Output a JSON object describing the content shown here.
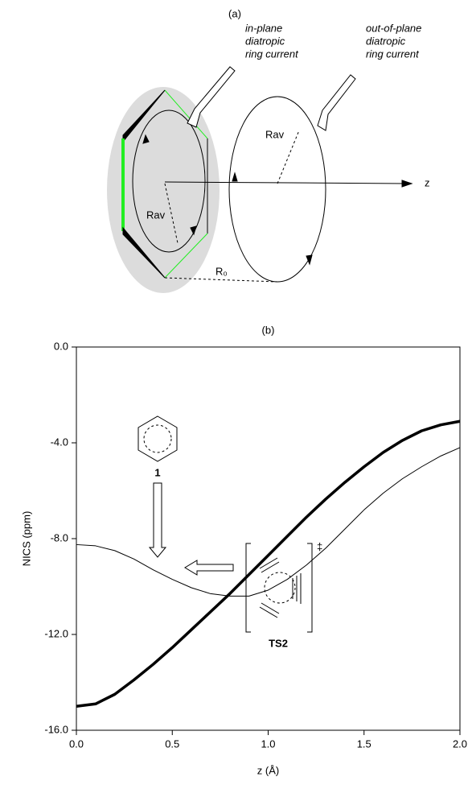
{
  "diagram": {
    "label": "(a)",
    "in_plane": [
      "in-plane",
      "diatropic",
      "ring current"
    ],
    "out_of_plane": [
      "out-of-plane",
      "diatropic",
      "ring current"
    ],
    "rav_in": "Rav",
    "rav_out": "Rav",
    "axis": "z",
    "r0": "R₀"
  },
  "chart_data": {
    "type": "line",
    "title": "(b)",
    "xlabel": "z (Å)",
    "ylabel": "NICS (ppm)",
    "x": [
      0,
      0.1,
      0.2,
      0.3,
      0.4,
      0.5,
      0.6,
      0.7,
      0.8,
      0.9,
      1.0,
      1.1,
      1.2,
      1.3,
      1.4,
      1.5,
      1.6,
      1.7,
      1.8,
      1.9,
      2.0
    ],
    "series": [
      {
        "name": "1",
        "color": "#000000",
        "width": 1,
        "values": [
          -8.25,
          -8.3,
          -8.5,
          -8.85,
          -9.3,
          -9.7,
          -10.05,
          -10.3,
          -10.4,
          -10.4,
          -10.15,
          -9.7,
          -9.1,
          -8.4,
          -7.6,
          -6.8,
          -6.1,
          -5.5,
          -5.0,
          -4.55,
          -4.2
        ]
      },
      {
        "name": "TS2",
        "color": "#000000",
        "width": 3.5,
        "values": [
          -15.0,
          -14.9,
          -14.5,
          -13.9,
          -13.25,
          -12.55,
          -11.8,
          -11.05,
          -10.3,
          -9.5,
          -8.7,
          -7.9,
          -7.1,
          -6.35,
          -5.65,
          -5.0,
          -4.4,
          -3.9,
          -3.5,
          -3.25,
          -3.1
        ]
      }
    ],
    "annotation": "‡",
    "xlim": [
      0,
      2.0
    ],
    "xticks": [
      {
        "value": 0,
        "label": "0.0"
      },
      0.5,
      {
        "value": 1,
        "label": "1.0"
      },
      1.5,
      {
        "value": 2,
        "label": "2.0"
      }
    ],
    "ylim": [
      -16,
      0
    ],
    "yticks": [
      {
        "value": 0,
        "label": "0.0"
      },
      {
        "value": -4,
        "label": "-4.0"
      },
      {
        "value": -8,
        "label": "-8.0"
      },
      {
        "value": -12,
        "label": "-12.0"
      },
      {
        "value": -16,
        "label": "-16.0"
      }
    ]
  }
}
